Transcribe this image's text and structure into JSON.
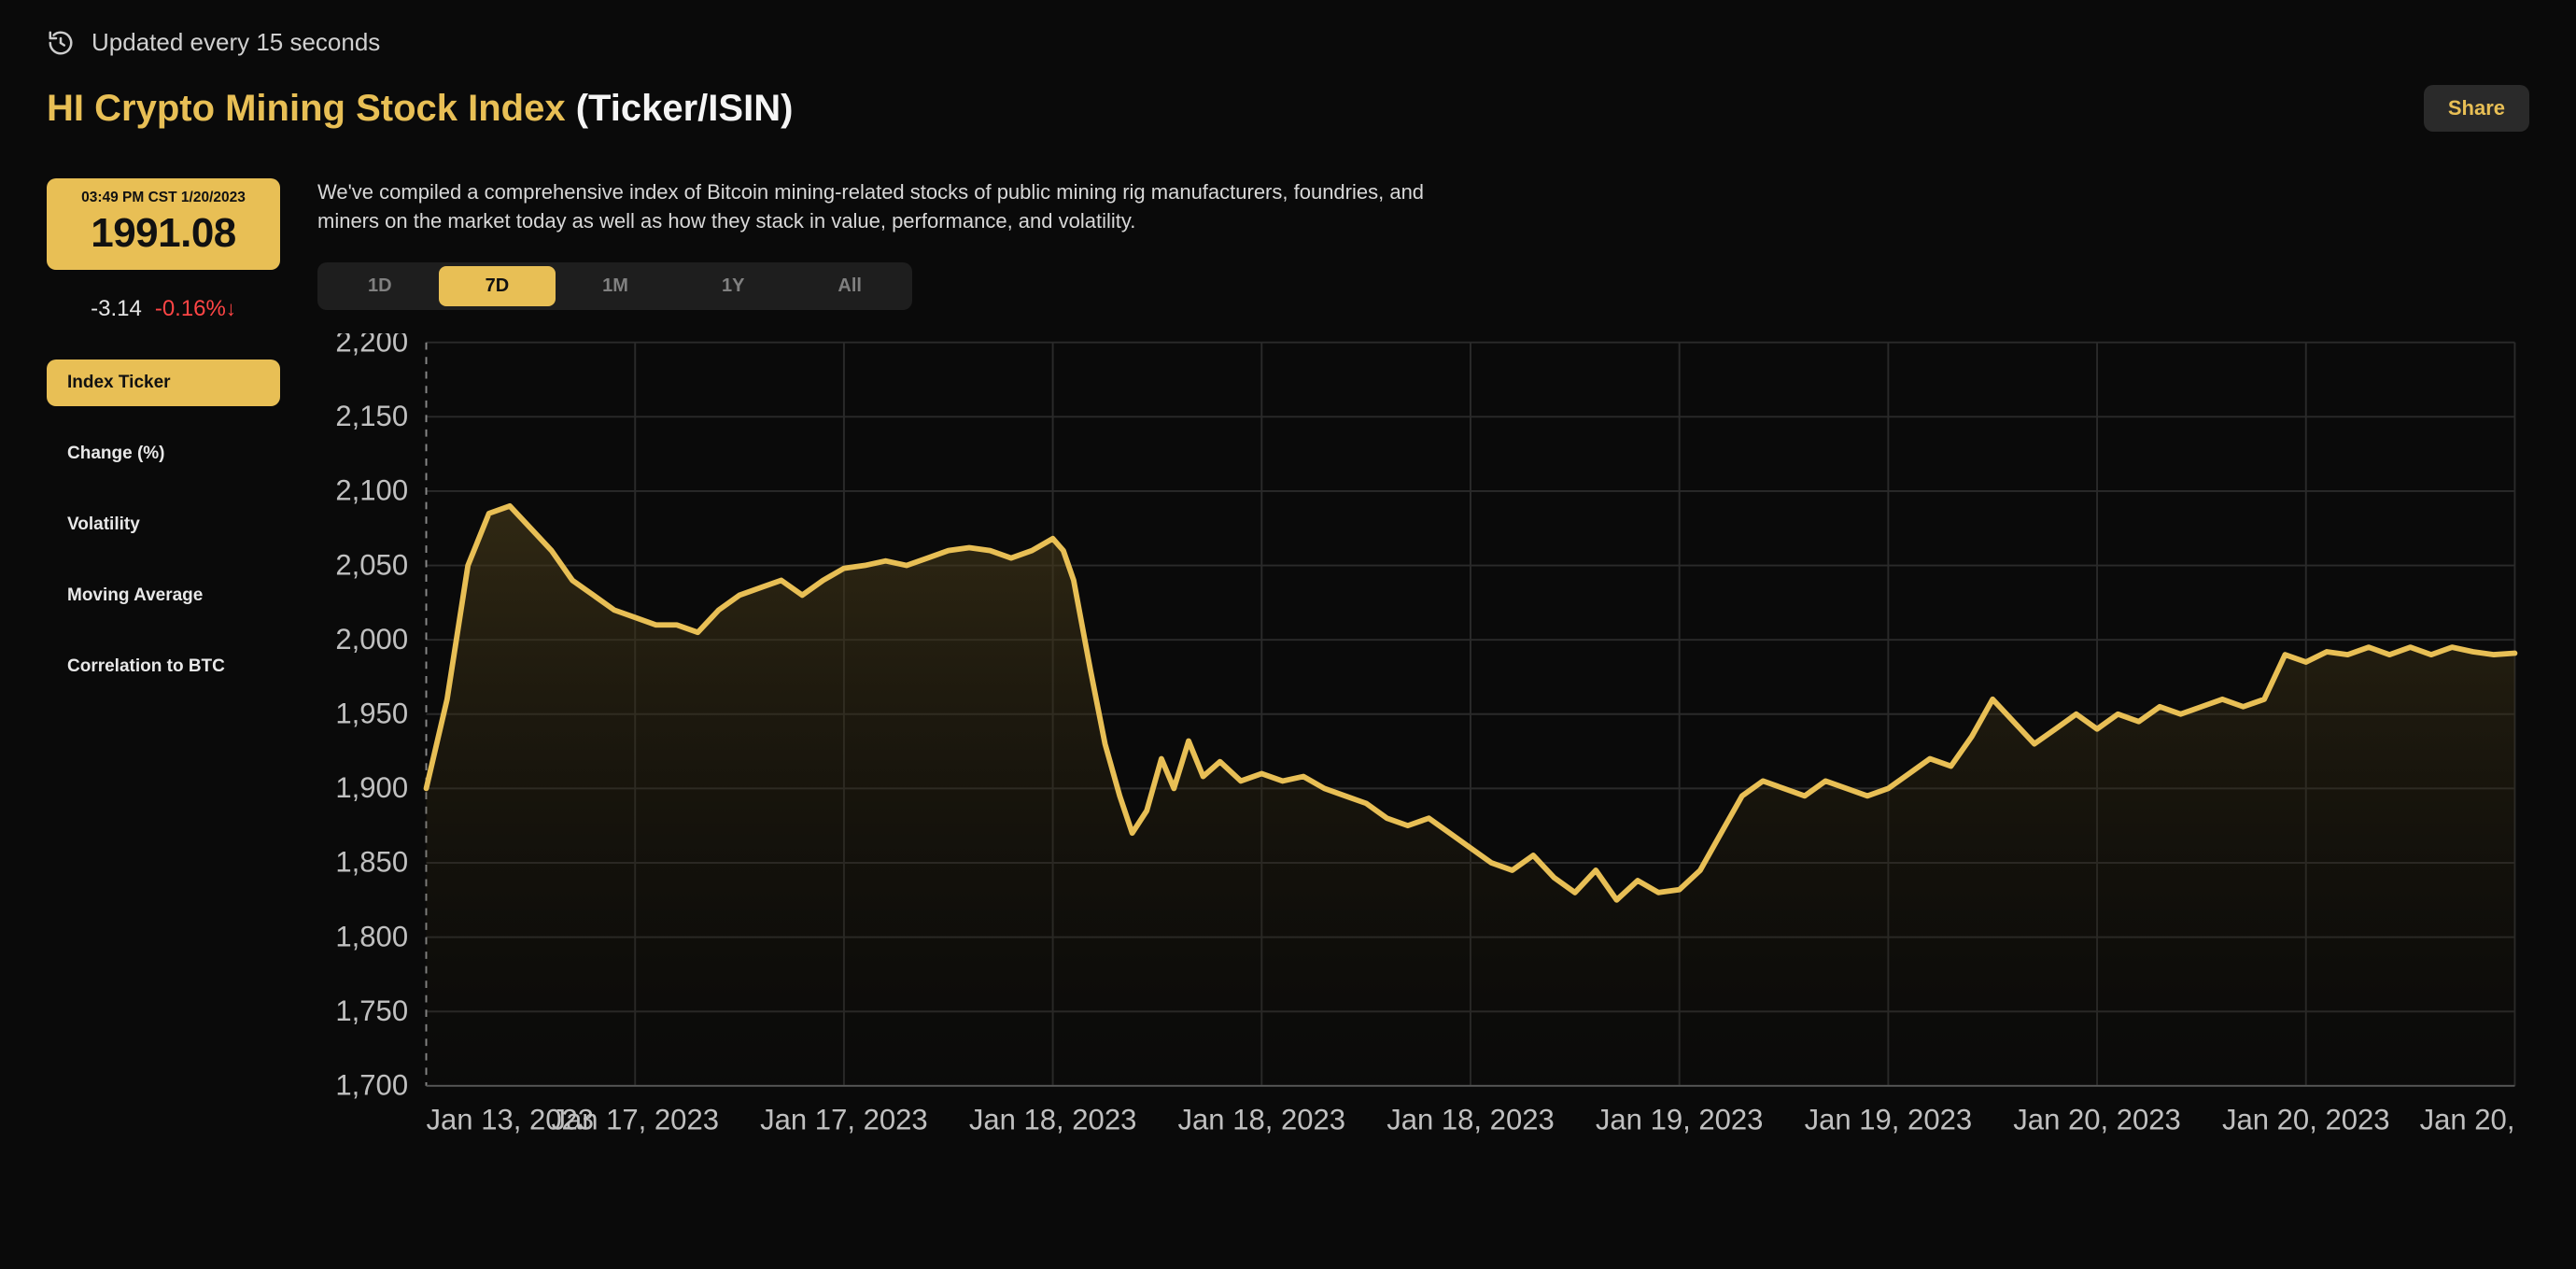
{
  "header": {
    "update_text": "Updated every 15 seconds",
    "title_prefix": "HI Crypto Mining Stock Index",
    "title_suffix": "(Ticker/ISIN)",
    "share_label": "Share"
  },
  "sidebar": {
    "timestamp": "03:49 PM CST 1/20/2023",
    "price": "1991.08",
    "delta_abs": "-3.14",
    "delta_pct": "-0.16%",
    "delta_arrow": "↓",
    "delta_color": "#ff4545",
    "tabs": [
      {
        "label": "Index Ticker",
        "active": true
      },
      {
        "label": "Change (%)",
        "active": false
      },
      {
        "label": "Volatility",
        "active": false
      },
      {
        "label": "Moving Average",
        "active": false
      },
      {
        "label": "Correlation to BTC",
        "active": false
      }
    ]
  },
  "main": {
    "description": "We've compiled a comprehensive index of Bitcoin mining-related stocks of public mining rig manufacturers, foundries, and miners on the market today as well as how they stack in value, performance, and volatility.",
    "range_tabs": [
      {
        "label": "1D",
        "active": false
      },
      {
        "label": "7D",
        "active": true
      },
      {
        "label": "1M",
        "active": false
      },
      {
        "label": "1Y",
        "active": false
      },
      {
        "label": "All",
        "active": false
      }
    ]
  },
  "chart": {
    "type": "area",
    "background_color": "#0a0a0a",
    "line_color": "#e8bf55",
    "line_width": 3,
    "fill_top_color": "#4a3d1a",
    "fill_top_opacity": 0.6,
    "fill_bottom_color": "#1a1508",
    "fill_bottom_opacity": 0.05,
    "grid_color": "#2a2a2a",
    "axis_text_color": "#c0c0c0",
    "axis_font_size": 16,
    "y_axis": {
      "min": 1700,
      "max": 2200,
      "ticks": [
        1700,
        1750,
        1800,
        1850,
        1900,
        1950,
        2000,
        2050,
        2100,
        2150,
        2200
      ],
      "labels": [
        "1,700",
        "1,750",
        "1,800",
        "1,850",
        "1,900",
        "1,950",
        "2,000",
        "2,050",
        "2,100",
        "2,150",
        "2,200"
      ]
    },
    "x_axis": {
      "tick_positions": [
        0,
        0.1,
        0.2,
        0.3,
        0.4,
        0.5,
        0.6,
        0.7,
        0.8,
        0.9,
        1.0
      ],
      "labels": [
        "Jan 13, 2023",
        "Jan 17, 2023",
        "Jan 17, 2023",
        "Jan 18, 2023",
        "Jan 18, 2023",
        "Jan 18, 2023",
        "Jan 19, 2023",
        "Jan 19, 2023",
        "Jan 20, 2023",
        "Jan 20, 2023",
        "Jan 20,"
      ]
    },
    "series": [
      [
        0.0,
        1900
      ],
      [
        0.01,
        1960
      ],
      [
        0.02,
        2050
      ],
      [
        0.03,
        2085
      ],
      [
        0.04,
        2090
      ],
      [
        0.05,
        2075
      ],
      [
        0.06,
        2060
      ],
      [
        0.07,
        2040
      ],
      [
        0.08,
        2030
      ],
      [
        0.09,
        2020
      ],
      [
        0.1,
        2015
      ],
      [
        0.11,
        2010
      ],
      [
        0.12,
        2010
      ],
      [
        0.13,
        2005
      ],
      [
        0.14,
        2020
      ],
      [
        0.15,
        2030
      ],
      [
        0.16,
        2035
      ],
      [
        0.17,
        2040
      ],
      [
        0.18,
        2030
      ],
      [
        0.19,
        2040
      ],
      [
        0.2,
        2048
      ],
      [
        0.21,
        2050
      ],
      [
        0.22,
        2053
      ],
      [
        0.23,
        2050
      ],
      [
        0.24,
        2055
      ],
      [
        0.25,
        2060
      ],
      [
        0.26,
        2062
      ],
      [
        0.27,
        2060
      ],
      [
        0.28,
        2055
      ],
      [
        0.29,
        2060
      ],
      [
        0.3,
        2068
      ],
      [
        0.305,
        2060
      ],
      [
        0.31,
        2040
      ],
      [
        0.318,
        1980
      ],
      [
        0.325,
        1930
      ],
      [
        0.332,
        1895
      ],
      [
        0.338,
        1870
      ],
      [
        0.345,
        1885
      ],
      [
        0.352,
        1920
      ],
      [
        0.358,
        1900
      ],
      [
        0.365,
        1932
      ],
      [
        0.372,
        1908
      ],
      [
        0.38,
        1918
      ],
      [
        0.39,
        1905
      ],
      [
        0.4,
        1910
      ],
      [
        0.41,
        1905
      ],
      [
        0.42,
        1908
      ],
      [
        0.43,
        1900
      ],
      [
        0.44,
        1895
      ],
      [
        0.45,
        1890
      ],
      [
        0.46,
        1880
      ],
      [
        0.47,
        1875
      ],
      [
        0.48,
        1880
      ],
      [
        0.49,
        1870
      ],
      [
        0.5,
        1860
      ],
      [
        0.51,
        1850
      ],
      [
        0.52,
        1845
      ],
      [
        0.53,
        1855
      ],
      [
        0.54,
        1840
      ],
      [
        0.55,
        1830
      ],
      [
        0.56,
        1845
      ],
      [
        0.57,
        1825
      ],
      [
        0.58,
        1838
      ],
      [
        0.59,
        1830
      ],
      [
        0.6,
        1832
      ],
      [
        0.61,
        1845
      ],
      [
        0.62,
        1870
      ],
      [
        0.63,
        1895
      ],
      [
        0.64,
        1905
      ],
      [
        0.65,
        1900
      ],
      [
        0.66,
        1895
      ],
      [
        0.67,
        1905
      ],
      [
        0.68,
        1900
      ],
      [
        0.69,
        1895
      ],
      [
        0.7,
        1900
      ],
      [
        0.71,
        1910
      ],
      [
        0.72,
        1920
      ],
      [
        0.73,
        1915
      ],
      [
        0.74,
        1935
      ],
      [
        0.75,
        1960
      ],
      [
        0.76,
        1945
      ],
      [
        0.77,
        1930
      ],
      [
        0.78,
        1940
      ],
      [
        0.79,
        1950
      ],
      [
        0.8,
        1940
      ],
      [
        0.81,
        1950
      ],
      [
        0.82,
        1945
      ],
      [
        0.83,
        1955
      ],
      [
        0.84,
        1950
      ],
      [
        0.85,
        1955
      ],
      [
        0.86,
        1960
      ],
      [
        0.87,
        1955
      ],
      [
        0.88,
        1960
      ],
      [
        0.89,
        1990
      ],
      [
        0.9,
        1985
      ],
      [
        0.91,
        1992
      ],
      [
        0.92,
        1990
      ],
      [
        0.93,
        1995
      ],
      [
        0.94,
        1990
      ],
      [
        0.95,
        1995
      ],
      [
        0.96,
        1990
      ],
      [
        0.97,
        1995
      ],
      [
        0.98,
        1992
      ],
      [
        0.99,
        1990
      ],
      [
        1.0,
        1991
      ]
    ]
  }
}
